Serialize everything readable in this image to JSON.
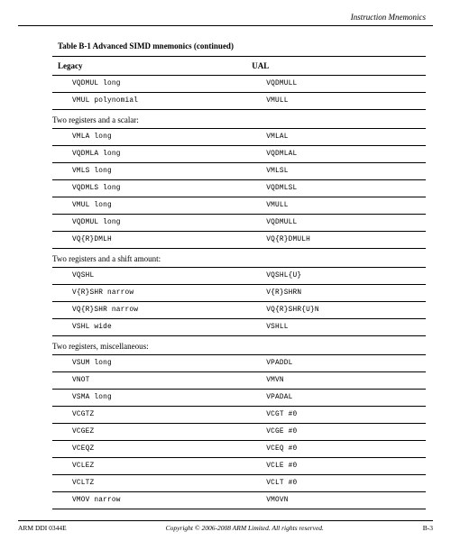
{
  "header": {
    "section": "Instruction Mnemonics"
  },
  "table": {
    "title": "Table B-1 Advanced SIMD mnemonics (continued)",
    "columns": {
      "legacy": "Legacy",
      "ual": "UAL"
    },
    "rows": [
      {
        "type": "data",
        "legacy": "VQDMUL long",
        "ual": "VQDMULL"
      },
      {
        "type": "data",
        "legacy": "VMUL polynomial",
        "ual": "VMULL"
      },
      {
        "type": "group",
        "label": "Two registers and a scalar:"
      },
      {
        "type": "data",
        "legacy": "VMLA long",
        "ual": "VMLAL"
      },
      {
        "type": "data",
        "legacy": "VQDMLA long",
        "ual": "VQDMLAL"
      },
      {
        "type": "data",
        "legacy": "VMLS long",
        "ual": "VMLSL"
      },
      {
        "type": "data",
        "legacy": "VQDMLS long",
        "ual": "VQDMLSL"
      },
      {
        "type": "data",
        "legacy": "VMUL long",
        "ual": "VMULL"
      },
      {
        "type": "data",
        "legacy": "VQDMUL long",
        "ual": "VQDMULL"
      },
      {
        "type": "data",
        "legacy": "VQ{R}DMLH",
        "ual": "VQ{R}DMULH"
      },
      {
        "type": "group",
        "label": "Two registers and a shift amount:"
      },
      {
        "type": "data",
        "legacy": "VQSHL",
        "ual": "VQSHL{U}"
      },
      {
        "type": "data",
        "legacy": "V{R}SHR narrow",
        "ual": "V{R}SHRN"
      },
      {
        "type": "data",
        "legacy": "VQ{R}SHR narrow",
        "ual": "VQ{R}SHR{U}N"
      },
      {
        "type": "data",
        "legacy": "VSHL wide",
        "ual": "VSHLL"
      },
      {
        "type": "group",
        "label": "Two registers, miscellaneous:"
      },
      {
        "type": "data",
        "legacy": "VSUM long",
        "ual": "VPADDL"
      },
      {
        "type": "data",
        "legacy": "VNOT",
        "ual": "VMVN"
      },
      {
        "type": "data",
        "legacy": "VSMA long",
        "ual": "VPADAL"
      },
      {
        "type": "data",
        "legacy": "VCGTZ",
        "ual": "VCGT #0"
      },
      {
        "type": "data",
        "legacy": "VCGEZ",
        "ual": "VCGE #0"
      },
      {
        "type": "data",
        "legacy": "VCEQZ",
        "ual": "VCEQ #0"
      },
      {
        "type": "data",
        "legacy": "VCLEZ",
        "ual": "VCLE #0"
      },
      {
        "type": "data",
        "legacy": "VCLTZ",
        "ual": "VCLT #0"
      },
      {
        "type": "data",
        "legacy": "VMOV narrow",
        "ual": "VMOVN"
      }
    ]
  },
  "footer": {
    "left": "ARM DDI 0344E",
    "center": "Copyright © 2006-2008 ARM Limited. All rights reserved.",
    "right": "B-3"
  },
  "style": {
    "page_bg": "#ffffff",
    "text_color": "#000000",
    "rule_color": "#000000",
    "body_font": "Times New Roman",
    "mono_font": "Courier New",
    "title_fontsize_pt": 9,
    "header_fontsize_pt": 9,
    "row_fontsize_pt": 8,
    "footer_fontsize_pt": 7.5
  }
}
